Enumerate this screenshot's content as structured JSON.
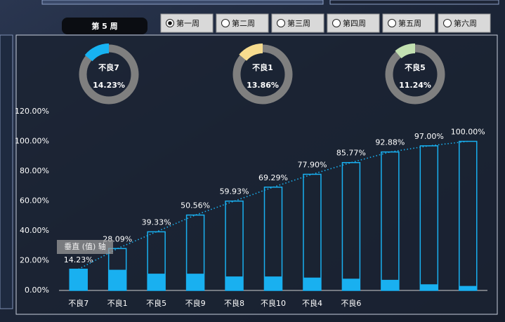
{
  "header": {
    "week_label": "第 5 周",
    "weeks": [
      "第一周",
      "第二周",
      "第三周",
      "第四周",
      "第五周",
      "第六周"
    ],
    "selected": 0
  },
  "gauges": [
    {
      "label": "不良7",
      "value": 14.23,
      "value_label": "14.23%",
      "color": "#17b3f2"
    },
    {
      "label": "不良1",
      "value": 13.86,
      "value_label": "13.86%",
      "color": "#f7dc8f"
    },
    {
      "label": "不良5",
      "value": 11.24,
      "value_label": "11.24%",
      "color": "#c3e1b2"
    }
  ],
  "chart_data": {
    "type": "pareto",
    "axis_tooltip": "垂直 (值) 轴",
    "categories": [
      "不良7",
      "不良1",
      "不良5",
      "不良9",
      "不良8",
      "不良10",
      "不良4",
      "不良6",
      null,
      null,
      null
    ],
    "series": [
      {
        "style": "filled",
        "color": "#19b0f0",
        "values": [
          14.23,
          13.86,
          11.24,
          11.23,
          9.37,
          9.36,
          8.61,
          7.87,
          7.11,
          4.12,
          3.0
        ]
      },
      {
        "style": "outline",
        "trendline": true,
        "color": "#19b0f0",
        "values": [
          14.23,
          28.09,
          39.33,
          50.56,
          59.93,
          69.29,
          77.9,
          85.77,
          92.88,
          97.0,
          100.0
        ],
        "value_labels": [
          "14.23%",
          "28.09%",
          "39.33%",
          "50.56%",
          "59.93%",
          "69.29%",
          "77.90%",
          "85.77%",
          "92.88%",
          "97.00%",
          "100.00%"
        ]
      }
    ],
    "ylim": [
      0,
      120
    ],
    "yticks": [
      {
        "value": 0,
        "label": "0.00%"
      },
      {
        "value": 20,
        "label": "20.00%"
      },
      {
        "value": 40,
        "label": "40.00%"
      },
      {
        "value": 60,
        "label": "60.00%"
      },
      {
        "value": 80,
        "label": "80.00%"
      },
      {
        "value": 100,
        "label": "100.00%"
      },
      {
        "value": 120,
        "label": "120.00%"
      }
    ]
  }
}
